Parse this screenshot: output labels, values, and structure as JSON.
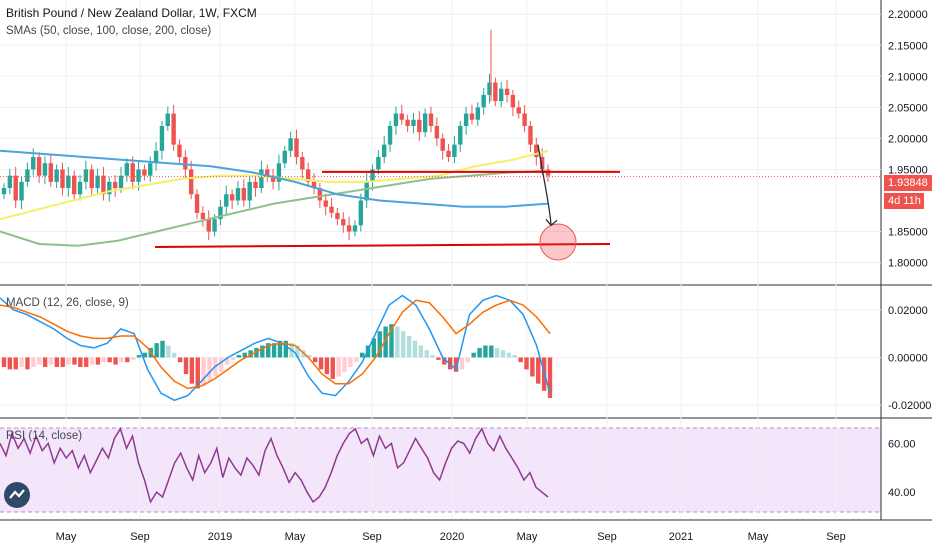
{
  "header": {
    "title": "British Pound / New Zealand Dollar, 1W, FXCM",
    "sma_label": "SMAs (50, close, 100, close, 200, close)"
  },
  "macd_label": "MACD (12, 26, close, 9)",
  "rsi_label": "RSI (14, close)",
  "price_tag": "1.93848",
  "timer_tag": "4d 11h",
  "colors": {
    "up": "#26a69a",
    "down": "#ef5350",
    "sma50": "#f5f064",
    "sma100": "#8fbf8a",
    "sma200": "#4aa3df",
    "macd": "#2196f3",
    "signal": "#ff6d00",
    "rsi": "#8e3a8e",
    "rsi_band": "#f3e6fb",
    "level": "#e00000"
  },
  "chart_data": [
    {
      "type": "candlestick",
      "title": "British Pound / New Zealand Dollar, 1W, FXCM",
      "xlabel": "",
      "ylabel": "",
      "x_ticks": [
        "May",
        "Sep",
        "2019",
        "May",
        "Sep",
        "2020",
        "May",
        "Sep",
        "2021",
        "May",
        "Sep"
      ],
      "ylim": [
        1.78,
        2.21
      ],
      "y_ticks": [
        "2.20000",
        "2.15000",
        "2.10000",
        "2.05000",
        "2.00000",
        "1.95000",
        "1.85000",
        "1.80000"
      ],
      "last_price": 1.93848,
      "ohlc_close_path": [
        1.92,
        1.94,
        1.9,
        1.93,
        1.95,
        1.97,
        1.94,
        1.96,
        1.93,
        1.95,
        1.92,
        1.94,
        1.91,
        1.93,
        1.95,
        1.92,
        1.94,
        1.91,
        1.93,
        1.92,
        1.94,
        1.96,
        1.93,
        1.95,
        1.94,
        1.96,
        1.98,
        2.02,
        2.04,
        1.99,
        1.97,
        1.95,
        1.91,
        1.88,
        1.87,
        1.85,
        1.87,
        1.89,
        1.91,
        1.9,
        1.92,
        1.9,
        1.93,
        1.92,
        1.95,
        1.94,
        1.93,
        1.96,
        1.98,
        2.0,
        1.97,
        1.95,
        1.93,
        1.92,
        1.9,
        1.89,
        1.88,
        1.87,
        1.86,
        1.85,
        1.86,
        1.9,
        1.93,
        1.95,
        1.97,
        1.99,
        2.02,
        2.04,
        2.03,
        2.02,
        2.03,
        2.01,
        2.04,
        2.02,
        2.0,
        1.98,
        1.97,
        1.99,
        2.02,
        2.04,
        2.03,
        2.05,
        2.07,
        2.09,
        2.06,
        2.08,
        2.07,
        2.05,
        2.04,
        2.02,
        1.99,
        1.97,
        1.95,
        1.94
      ],
      "sma_50": [
        1.87,
        1.885,
        1.9,
        1.915,
        1.925,
        1.935,
        1.94,
        1.94,
        1.935,
        1.93,
        1.93,
        1.935,
        1.94,
        1.955,
        1.965,
        1.98
      ],
      "sma_100": [
        1.85,
        1.83,
        1.827,
        1.835,
        1.85,
        1.865,
        1.88,
        1.895,
        1.905,
        1.915,
        1.925,
        1.935,
        1.94,
        1.945,
        1.948
      ],
      "sma_200": [
        1.98,
        1.975,
        1.97,
        1.965,
        1.96,
        1.955,
        1.945,
        1.93,
        1.91,
        1.9,
        1.895,
        1.89,
        1.89,
        1.895
      ],
      "annotations": {
        "resistance_level": 1.946,
        "support_level": 1.83,
        "target_circle_price": 1.83,
        "arrow_from_price": 1.99,
        "arrow_to_price": 1.86
      }
    },
    {
      "type": "bar",
      "title": "MACD (12, 26, close, 9)",
      "ylim": [
        -0.025,
        0.03
      ],
      "y_ticks": [
        "0.02000",
        "0.00000",
        "-0.02000"
      ],
      "histogram": [
        -0.004,
        -0.005,
        -0.005,
        -0.004,
        -0.005,
        -0.004,
        -0.003,
        -0.004,
        -0.003,
        -0.004,
        -0.004,
        -0.003,
        -0.003,
        -0.004,
        -0.004,
        -0.003,
        -0.003,
        -0.002,
        -0.002,
        -0.003,
        -0.002,
        -0.002,
        -0.001,
        0.001,
        0.002,
        0.004,
        0.006,
        0.007,
        0.005,
        0.002,
        -0.002,
        -0.007,
        -0.011,
        -0.013,
        -0.012,
        -0.01,
        -0.008,
        -0.006,
        -0.003,
        -0.001,
        0.001,
        0.002,
        0.003,
        0.004,
        0.005,
        0.006,
        0.006,
        0.007,
        0.007,
        0.006,
        0.005,
        0.003,
        0.001,
        -0.002,
        -0.005,
        -0.007,
        -0.009,
        -0.008,
        -0.006,
        -0.004,
        -0.002,
        0.002,
        0.005,
        0.008,
        0.011,
        0.013,
        0.014,
        0.013,
        0.011,
        0.009,
        0.007,
        0.005,
        0.003,
        0.001,
        -0.001,
        -0.003,
        -0.005,
        -0.006,
        -0.005,
        -0.002,
        0.002,
        0.004,
        0.005,
        0.005,
        0.004,
        0.003,
        0.002,
        0.001,
        -0.002,
        -0.005,
        -0.008,
        -0.011,
        -0.014,
        -0.017
      ],
      "macd": [
        0.025,
        0.02,
        0.018,
        0.015,
        0.012,
        0.008,
        0.005,
        0.004,
        0.006,
        0.012,
        0.01,
        -0.005,
        -0.015,
        -0.018,
        -0.016,
        -0.01,
        -0.004,
        0.0,
        0.003,
        0.006,
        0.008,
        0.006,
        0.002,
        -0.008,
        -0.015,
        -0.016,
        -0.01,
        -0.002,
        0.01,
        0.022,
        0.026,
        0.022,
        0.012,
        0.0,
        -0.005,
        0.018,
        0.024,
        0.026,
        0.024,
        0.018,
        0.005,
        -0.015
      ],
      "signal": [
        0.022,
        0.021,
        0.019,
        0.017,
        0.014,
        0.011,
        0.009,
        0.008,
        0.008,
        0.009,
        0.009,
        0.004,
        -0.004,
        -0.01,
        -0.013,
        -0.012,
        -0.009,
        -0.005,
        -0.001,
        0.002,
        0.005,
        0.006,
        0.005,
        0.0,
        -0.007,
        -0.011,
        -0.011,
        -0.007,
        0.0,
        0.01,
        0.019,
        0.024,
        0.023,
        0.017,
        0.01,
        0.014,
        0.019,
        0.022,
        0.024,
        0.022,
        0.017,
        0.01
      ]
    },
    {
      "type": "line",
      "title": "RSI (14, close)",
      "ylim": [
        29,
        70
      ],
      "y_ticks": [
        "60.00",
        "40.00"
      ],
      "band": [
        30,
        70
      ],
      "rsi": [
        60,
        55,
        64,
        58,
        62,
        56,
        63,
        57,
        60,
        52,
        58,
        54,
        57,
        50,
        55,
        48,
        53,
        58,
        54,
        62,
        66,
        58,
        63,
        52,
        45,
        36,
        40,
        38,
        45,
        52,
        56,
        50,
        45,
        55,
        48,
        52,
        58,
        46,
        54,
        50,
        47,
        54,
        51,
        47,
        57,
        62,
        55,
        50,
        44,
        48,
        45,
        40,
        36,
        38,
        42,
        48,
        55,
        60,
        64,
        66,
        60,
        62,
        55,
        63,
        58,
        60,
        50,
        52,
        57,
        62,
        58,
        54,
        48,
        45,
        52,
        58,
        61,
        60,
        56,
        62,
        66,
        60,
        57,
        63,
        58,
        54,
        50,
        45,
        48,
        42,
        40,
        38
      ]
    }
  ]
}
